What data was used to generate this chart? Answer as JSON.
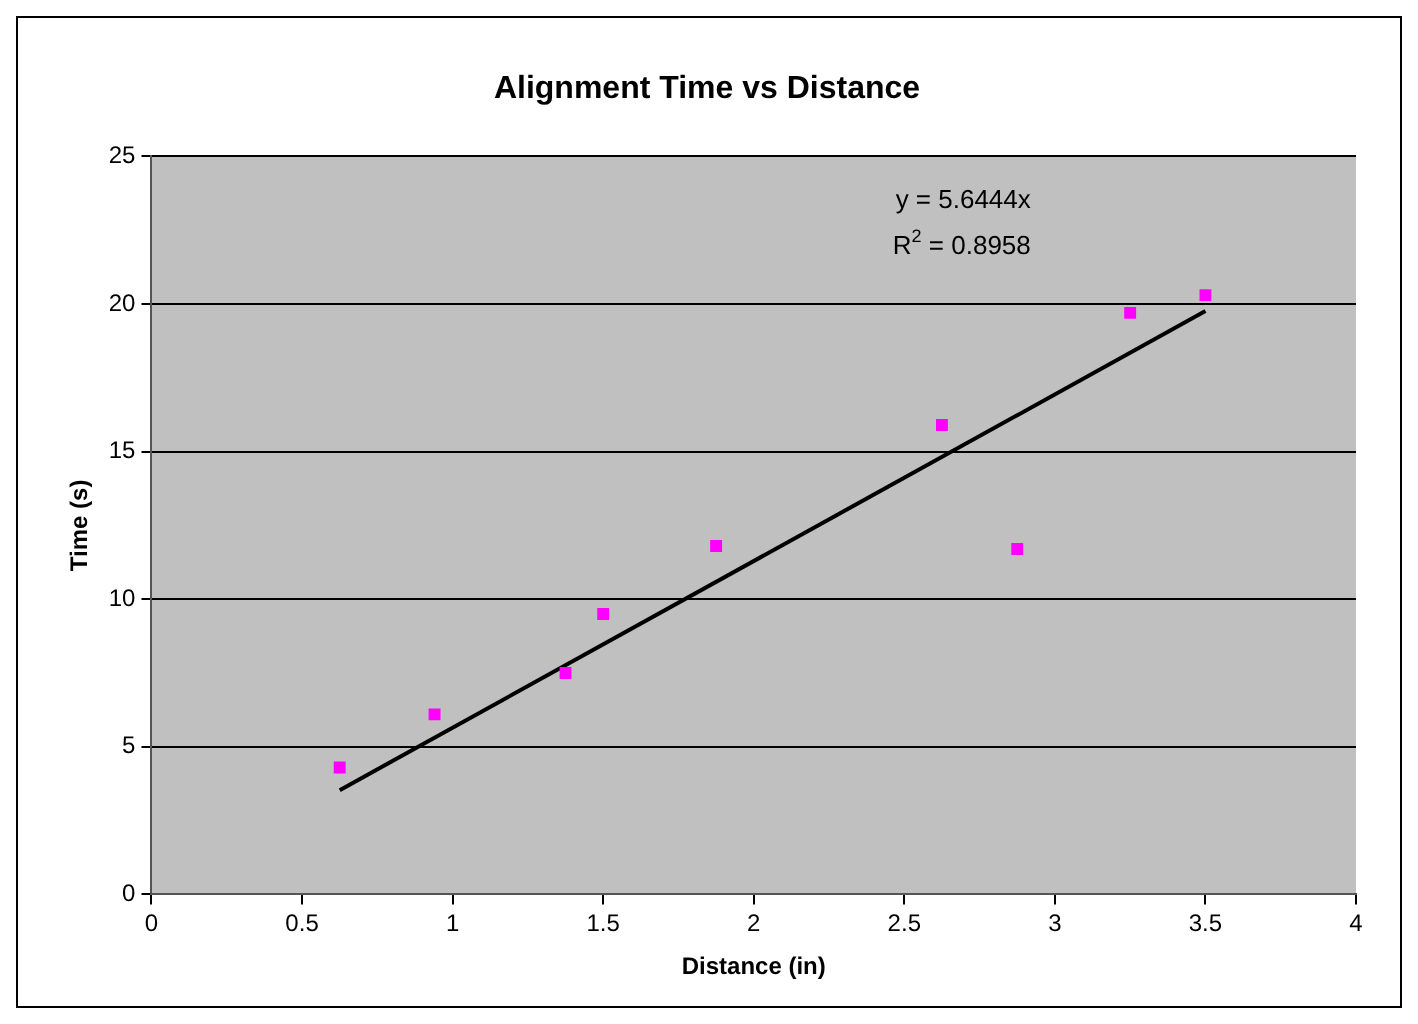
{
  "chart_data": {
    "type": "scatter",
    "title": "Alignment Time vs Distance",
    "xlabel": "Distance (in)",
    "ylabel": "Time (s)",
    "series": [
      {
        "color": "#ff00ff",
        "marker": "square",
        "x": [
          0.625,
          0.94,
          1.375,
          1.5,
          1.875,
          2.625,
          2.875,
          3.25,
          3.5
        ],
        "values": [
          4.3,
          6.1,
          7.5,
          9.5,
          11.8,
          15.9,
          11.7,
          19.7,
          20.3
        ]
      },
      {
        "type": "line",
        "color": "#000000",
        "marker": "none",
        "line_style": "solid",
        "x": [
          0.625,
          3.5
        ],
        "values": [
          3.53,
          19.76
        ]
      }
    ],
    "annotations": [
      "y = 5.6444x",
      "R$^{2}$ = 0.8958"
    ],
    "xlim": [
      0,
      4
    ],
    "xticks": [
      0,
      0.5,
      1,
      1.5,
      2,
      2.5,
      3,
      3.5,
      4
    ],
    "ylim": [
      0,
      25
    ],
    "yticks": [
      0,
      5,
      10,
      15,
      20,
      25
    ],
    "grid": "y",
    "legend": false
  }
}
